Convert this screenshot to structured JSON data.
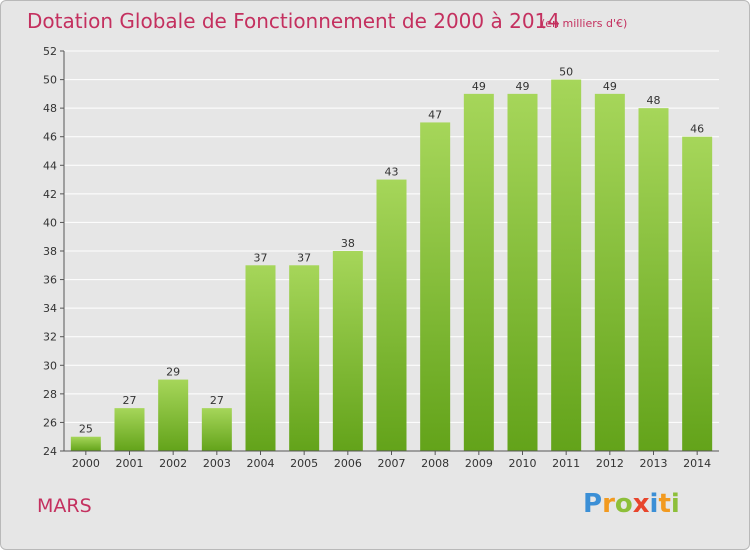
{
  "header": {
    "title": "Dotation Globale de Fonctionnement de 2000 à 2014",
    "unit": "(en milliers d'€)"
  },
  "commune": "MARS",
  "logo": {
    "letters": [
      "P",
      "r",
      "o",
      "x",
      "i",
      "t",
      "i"
    ],
    "colors": [
      "#3b8fd6",
      "#f29a1f",
      "#8dbf3a",
      "#e8452c",
      "#3b8fd6",
      "#f29a1f",
      "#8dbf3a"
    ]
  },
  "colors": {
    "bar_top": "#a6d65a",
    "bar_bottom": "#63a31a",
    "axis": "#555555",
    "grid": "#ffffff",
    "accent": "#c4305f"
  },
  "chart_data": {
    "type": "bar",
    "categories": [
      "2000",
      "2001",
      "2002",
      "2003",
      "2004",
      "2005",
      "2006",
      "2007",
      "2008",
      "2009",
      "2010",
      "2011",
      "2012",
      "2013",
      "2014"
    ],
    "values": [
      25,
      27,
      29,
      27,
      37,
      37,
      38,
      43,
      47,
      49,
      49,
      50,
      49,
      48,
      46
    ],
    "title": "Dotation Globale de Fonctionnement de 2000 à 2014",
    "xlabel": "",
    "ylabel": "",
    "ylim": [
      24,
      52
    ],
    "yticks": [
      24,
      26,
      28,
      30,
      32,
      34,
      36,
      38,
      40,
      42,
      44,
      46,
      48,
      50,
      52
    ],
    "grid": true
  }
}
